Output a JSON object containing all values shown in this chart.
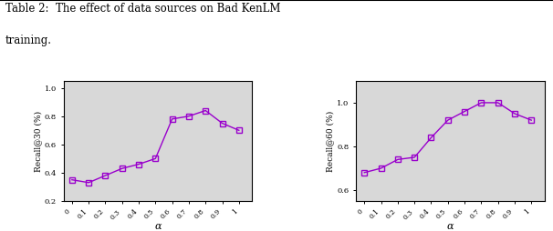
{
  "recall30_x": [
    0,
    0.1,
    0.2,
    0.3,
    0.4,
    0.5,
    0.6,
    0.7,
    0.8,
    0.9,
    1.0
  ],
  "recall30": [
    0.35,
    0.33,
    0.38,
    0.43,
    0.46,
    0.5,
    0.78,
    0.8,
    0.84,
    0.75,
    0.7
  ],
  "recall60_x": [
    0,
    0.1,
    0.2,
    0.3,
    0.4,
    0.5,
    0.6,
    0.7,
    0.8,
    0.9,
    1.0
  ],
  "recall60": [
    0.68,
    0.7,
    0.74,
    0.75,
    0.84,
    0.92,
    0.96,
    1.0,
    1.0,
    0.95,
    0.92
  ],
  "line_color": "#9900CC",
  "marker": "s",
  "ylabel1": "Recall@30 (%)",
  "ylabel2": "Recall@60 (%)",
  "xlabel": "α",
  "ylim1": [
    0.2,
    1.05
  ],
  "ylim2": [
    0.55,
    1.1
  ],
  "yticks1": [
    0.2,
    0.4,
    0.6,
    0.8,
    1.0
  ],
  "yticks2": [
    0.6,
    0.8,
    1.0
  ],
  "xticks": [
    0,
    0.1,
    0.2,
    0.3,
    0.4,
    0.5,
    0.6,
    0.7,
    0.8,
    0.9,
    1
  ],
  "xtick_labels": [
    "0",
    "0.1",
    "0.2",
    "0.3",
    "0.4",
    "0.5",
    "0.6",
    "0.7",
    "0.8",
    "0.9",
    "1"
  ],
  "caption_line1": "Table 2:  The effect of data sources on Bad KenLM",
  "caption_line2": "training.",
  "bg_color": "#d8d8d8"
}
